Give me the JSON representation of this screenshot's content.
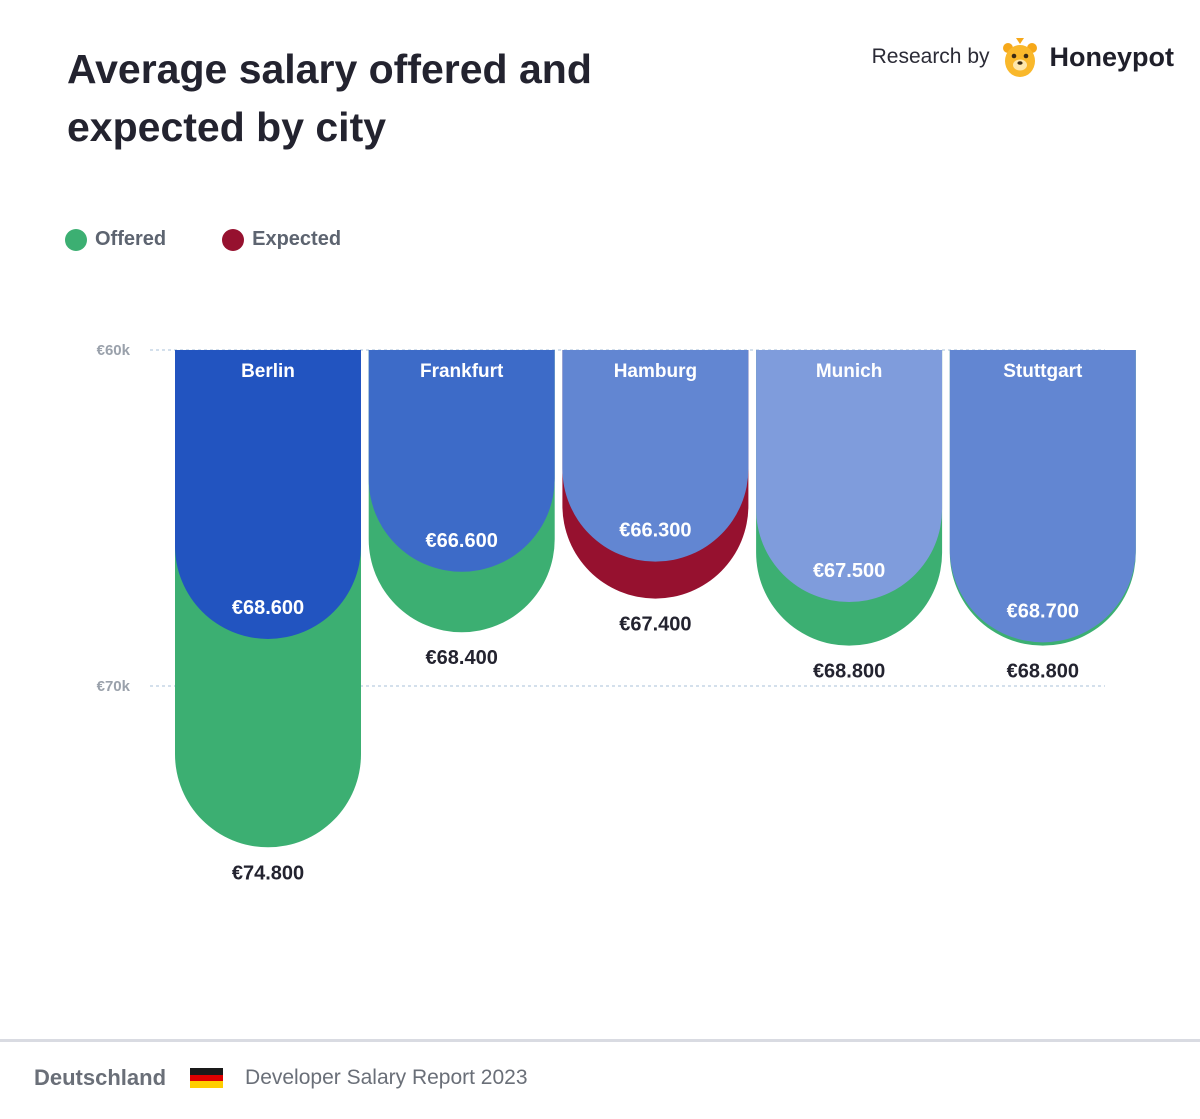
{
  "header": {
    "title": "Average salary offered and expected by city",
    "brand_prefix": "Research by",
    "brand_name": "Honeypot",
    "logo_icon": "honeypot-bear-icon"
  },
  "legend": [
    {
      "label": "Offered",
      "color": "#3caf72"
    },
    {
      "label": "Expected",
      "color": "#96112f"
    }
  ],
  "chart_data": {
    "type": "bar",
    "title": "Average salary offered and expected by city",
    "xlabel": "",
    "ylabel": "",
    "ylim": [
      60000,
      76000
    ],
    "y_ticks": [
      {
        "value": 60000,
        "label": "€60k"
      },
      {
        "value": 70000,
        "label": "€70k"
      }
    ],
    "grid": true,
    "legend_position": "top-left",
    "categories": [
      "Berlin",
      "Frankfurt",
      "Hamburg",
      "Munich",
      "Stuttgart"
    ],
    "series": [
      {
        "name": "Offered",
        "color": "#3caf72",
        "values": [
          74800,
          68400,
          null,
          68800,
          68800
        ],
        "labels": [
          "€74.800",
          "€68.400",
          null,
          "€68.800",
          "€68.800"
        ]
      },
      {
        "name": "Expected",
        "color": "#96112f",
        "values": [
          null,
          null,
          67400,
          null,
          null
        ],
        "labels": [
          null,
          null,
          "€67.400",
          null,
          null
        ]
      }
    ],
    "city_values": [
      68600,
      66600,
      66300,
      67500,
      68700
    ],
    "city_labels": [
      "€68.600",
      "€66.600",
      "€66.300",
      "€67.500",
      "€68.700"
    ],
    "city_colors": [
      "#2254c0",
      "#3d6bc8",
      "#6286d2",
      "#7f9cdc",
      "#6286d2"
    ]
  },
  "footer": {
    "country": "Deutschland",
    "report": "Developer Salary Report 2023",
    "flag_colors": [
      "#1a1a1a",
      "#dd0000",
      "#ffce00"
    ]
  }
}
